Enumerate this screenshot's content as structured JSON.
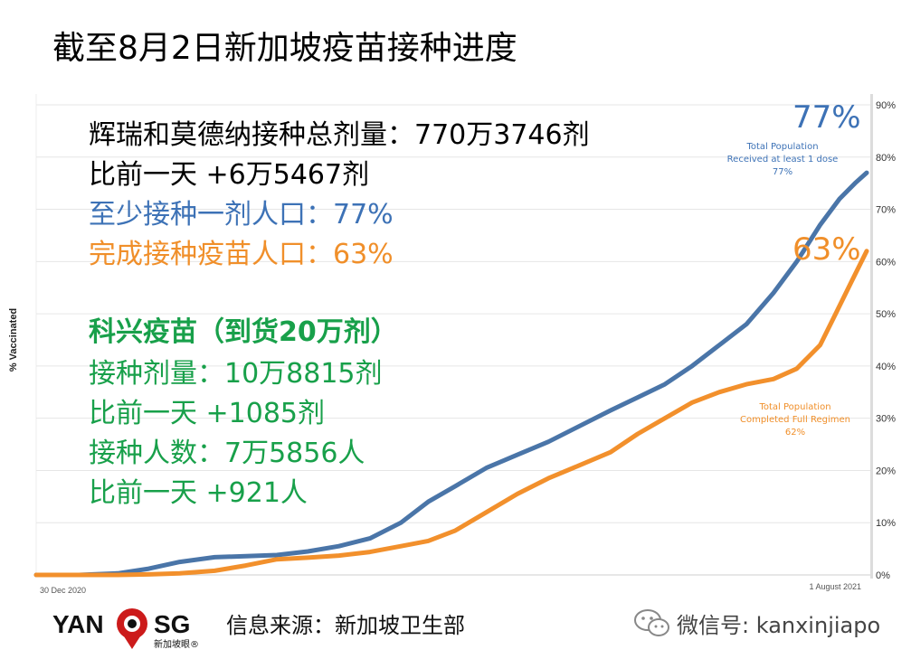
{
  "title": "截至8月2日新加坡疫苗接种进度",
  "stats": {
    "line1": "辉瑞和莫德纳接种总剂量：770万3746剂",
    "line2": "比前一天 +6万5467剂",
    "line3": "至少接种一剂人口：77%",
    "line4": "完成接种疫苗人口：63%",
    "sinovac_heading": "科兴疫苗（到货20万剂）",
    "sinovac_doses": "接种剂量：10万8815剂",
    "sinovac_doses_delta": "比前一天 +1085剂",
    "sinovac_people": "接种人数：7万5856人",
    "sinovac_people_delta": "比前一天 +921人"
  },
  "annotations": {
    "first_dose_big": "77%",
    "first_dose_label_1": "Total Population",
    "first_dose_label_2": "Received at least 1 dose",
    "first_dose_label_3": "77%",
    "full_big": "63%",
    "full_label_1": "Total Population",
    "full_label_2": "Completed Full Regimen",
    "full_label_3": "62%"
  },
  "footer": {
    "logo_text_left": "YAN",
    "logo_text_right": "SG",
    "logo_sub": "新加坡眼®",
    "source": "信息来源：新加坡卫生部",
    "wechat": "微信号: kanxinjiapo"
  },
  "colors": {
    "first_dose": "#4a75a8",
    "full": "#f2902c",
    "grid": "#e6e6e6",
    "axis_text": "#333333",
    "logo_red": "#cc1b1b"
  },
  "chart_data": {
    "type": "line",
    "ylabel": "% Vaccinated",
    "ylim": [
      0,
      90
    ],
    "yticks": [
      "0%",
      "10%",
      "20%",
      "30%",
      "40%",
      "50%",
      "60%",
      "70%",
      "80%",
      "90%"
    ],
    "x_start_label": "30 Dec 2020",
    "x_end_label": "1 August 2021",
    "xlim": [
      "2020-12-30",
      "2021-08-01"
    ],
    "series": [
      {
        "name": "Total Population Received at least 1 dose",
        "points": [
          [
            "2020-12-30",
            0
          ],
          [
            "2021-01-10",
            0
          ],
          [
            "2021-01-20",
            0.3
          ],
          [
            "2021-01-28",
            1.2
          ],
          [
            "2021-02-05",
            2.5
          ],
          [
            "2021-02-14",
            3.4
          ],
          [
            "2021-02-22",
            3.6
          ],
          [
            "2021-03-02",
            3.8
          ],
          [
            "2021-03-10",
            4.5
          ],
          [
            "2021-03-18",
            5.5
          ],
          [
            "2021-03-26",
            7
          ],
          [
            "2021-04-03",
            10
          ],
          [
            "2021-04-10",
            14
          ],
          [
            "2021-04-17",
            17
          ],
          [
            "2021-04-25",
            20.5
          ],
          [
            "2021-05-03",
            23
          ],
          [
            "2021-05-11",
            25.5
          ],
          [
            "2021-05-19",
            28.5
          ],
          [
            "2021-05-27",
            31.5
          ],
          [
            "2021-06-03",
            34
          ],
          [
            "2021-06-10",
            36.5
          ],
          [
            "2021-06-17",
            40
          ],
          [
            "2021-06-24",
            44
          ],
          [
            "2021-07-01",
            48
          ],
          [
            "2021-07-08",
            54
          ],
          [
            "2021-07-14",
            60
          ],
          [
            "2021-07-20",
            67
          ],
          [
            "2021-07-25",
            72
          ],
          [
            "2021-07-29",
            75
          ],
          [
            "2021-08-01",
            77
          ]
        ]
      },
      {
        "name": "Total Population Completed Full Regimen",
        "points": [
          [
            "2020-12-30",
            0
          ],
          [
            "2021-01-20",
            0
          ],
          [
            "2021-01-28",
            0.1
          ],
          [
            "2021-02-05",
            0.3
          ],
          [
            "2021-02-14",
            0.8
          ],
          [
            "2021-02-22",
            1.8
          ],
          [
            "2021-03-02",
            3
          ],
          [
            "2021-03-10",
            3.3
          ],
          [
            "2021-03-18",
            3.7
          ],
          [
            "2021-03-26",
            4.4
          ],
          [
            "2021-04-03",
            5.5
          ],
          [
            "2021-04-10",
            6.5
          ],
          [
            "2021-04-17",
            8.5
          ],
          [
            "2021-04-25",
            12
          ],
          [
            "2021-05-03",
            15.5
          ],
          [
            "2021-05-11",
            18.5
          ],
          [
            "2021-05-19",
            21
          ],
          [
            "2021-05-27",
            23.5
          ],
          [
            "2021-06-03",
            27
          ],
          [
            "2021-06-10",
            30
          ],
          [
            "2021-06-17",
            33
          ],
          [
            "2021-06-24",
            35
          ],
          [
            "2021-07-01",
            36.5
          ],
          [
            "2021-07-08",
            37.5
          ],
          [
            "2021-07-14",
            39.5
          ],
          [
            "2021-07-20",
            44
          ],
          [
            "2021-07-24",
            50
          ],
          [
            "2021-07-28",
            56
          ],
          [
            "2021-08-01",
            62
          ]
        ]
      }
    ]
  }
}
